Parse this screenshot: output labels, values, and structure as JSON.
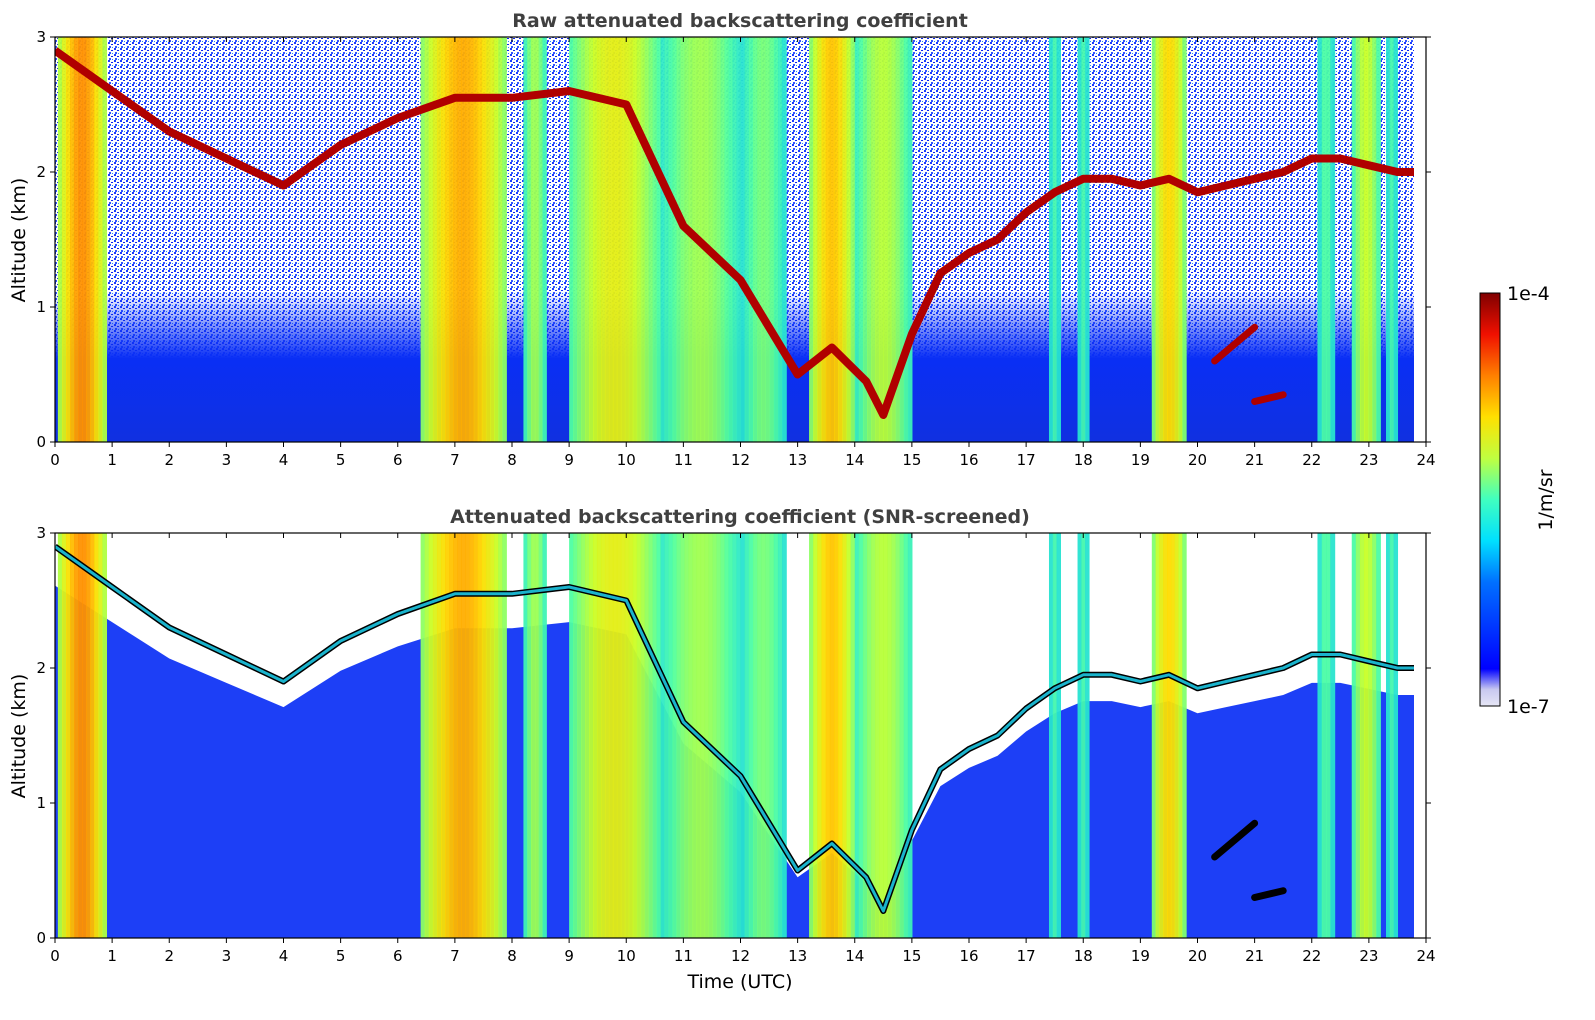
{
  "chart_data": [
    {
      "type": "heatmap",
      "title": "Raw attenuated backscattering coefficient",
      "xlabel": "",
      "ylabel": "Altitude (km)",
      "xlim": [
        0,
        24
      ],
      "ylim": [
        0,
        3
      ],
      "x_ticks": [
        "0",
        "1",
        "2",
        "3",
        "4",
        "5",
        "6",
        "7",
        "8",
        "9",
        "10",
        "11",
        "12",
        "13",
        "14",
        "15",
        "16",
        "17",
        "18",
        "19",
        "20",
        "21",
        "22",
        "23",
        "24"
      ],
      "y_ticks": [
        "0",
        "1",
        "2",
        "3"
      ],
      "colorscale": "jet",
      "value_range": [
        1e-07,
        0.0001
      ],
      "layer_altitude_km": [
        [
          0,
          2.9
        ],
        [
          1,
          2.6
        ],
        [
          2,
          2.3
        ],
        [
          3,
          2.1
        ],
        [
          4,
          1.9
        ],
        [
          5,
          2.2
        ],
        [
          6,
          2.4
        ],
        [
          7,
          2.55
        ],
        [
          8,
          2.55
        ],
        [
          9,
          2.6
        ],
        [
          10,
          2.5
        ],
        [
          11,
          1.6
        ],
        [
          12,
          1.2
        ],
        [
          13,
          0.5
        ],
        [
          13.6,
          0.7
        ],
        [
          14.2,
          0.45
        ],
        [
          14.5,
          0.2
        ],
        [
          15,
          0.8
        ],
        [
          15.5,
          1.25
        ],
        [
          16,
          1.4
        ],
        [
          16.5,
          1.5
        ],
        [
          17,
          1.7
        ],
        [
          17.5,
          1.85
        ],
        [
          18,
          1.95
        ],
        [
          18.5,
          1.95
        ],
        [
          19,
          1.9
        ],
        [
          19.5,
          1.95
        ],
        [
          20,
          1.85
        ],
        [
          20.5,
          1.9
        ],
        [
          21,
          1.95
        ],
        [
          21.5,
          2.0
        ],
        [
          22,
          2.1
        ],
        [
          22.5,
          2.1
        ],
        [
          23,
          2.05
        ],
        [
          23.5,
          2.0
        ],
        [
          23.85,
          2.0
        ]
      ],
      "low_clouds": [
        {
          "x0": 20.3,
          "y0": 0.6,
          "x1": 21.0,
          "y1": 0.85
        },
        {
          "x0": 21.0,
          "y0": 0.3,
          "x1": 21.5,
          "y1": 0.35
        }
      ],
      "plumes": [
        {
          "x0": 0.05,
          "x1": 0.9,
          "intensity": 0.82
        },
        {
          "x0": 6.4,
          "x1": 7.9,
          "intensity": 0.78
        },
        {
          "x0": 8.2,
          "x1": 8.6,
          "intensity": 0.55
        },
        {
          "x0": 9.0,
          "x1": 10.6,
          "intensity": 0.66
        },
        {
          "x0": 10.6,
          "x1": 12.0,
          "intensity": 0.55
        },
        {
          "x0": 12.0,
          "x1": 12.8,
          "intensity": 0.5
        },
        {
          "x0": 13.2,
          "x1": 14.0,
          "intensity": 0.75
        },
        {
          "x0": 14.0,
          "x1": 15.0,
          "intensity": 0.58
        },
        {
          "x0": 17.4,
          "x1": 17.6,
          "intensity": 0.42
        },
        {
          "x0": 17.9,
          "x1": 18.1,
          "intensity": 0.42
        },
        {
          "x0": 19.2,
          "x1": 19.8,
          "intensity": 0.72
        },
        {
          "x0": 22.1,
          "x1": 22.4,
          "intensity": 0.45
        },
        {
          "x0": 22.7,
          "x1": 23.2,
          "intensity": 0.6
        },
        {
          "x0": 23.3,
          "x1": 23.5,
          "intensity": 0.42
        }
      ],
      "screened": false
    },
    {
      "type": "heatmap",
      "title": "Attenuated backscattering coefficient (SNR-screened)",
      "xlabel": "Time (UTC)",
      "ylabel": "Altitude (km)",
      "xlim": [
        0,
        24
      ],
      "ylim": [
        0,
        3
      ],
      "x_ticks": [
        "0",
        "1",
        "2",
        "3",
        "4",
        "5",
        "6",
        "7",
        "8",
        "9",
        "10",
        "11",
        "12",
        "13",
        "14",
        "15",
        "16",
        "17",
        "18",
        "19",
        "20",
        "21",
        "22",
        "23",
        "24"
      ],
      "y_ticks": [
        "0",
        "1",
        "2",
        "3"
      ],
      "colorscale": "jet",
      "value_range": [
        1e-07,
        0.0001
      ],
      "screened": true
    }
  ],
  "colorbar": {
    "max_label": "1e-4",
    "min_label": "1e-7",
    "unit_label": "1/m/sr"
  }
}
